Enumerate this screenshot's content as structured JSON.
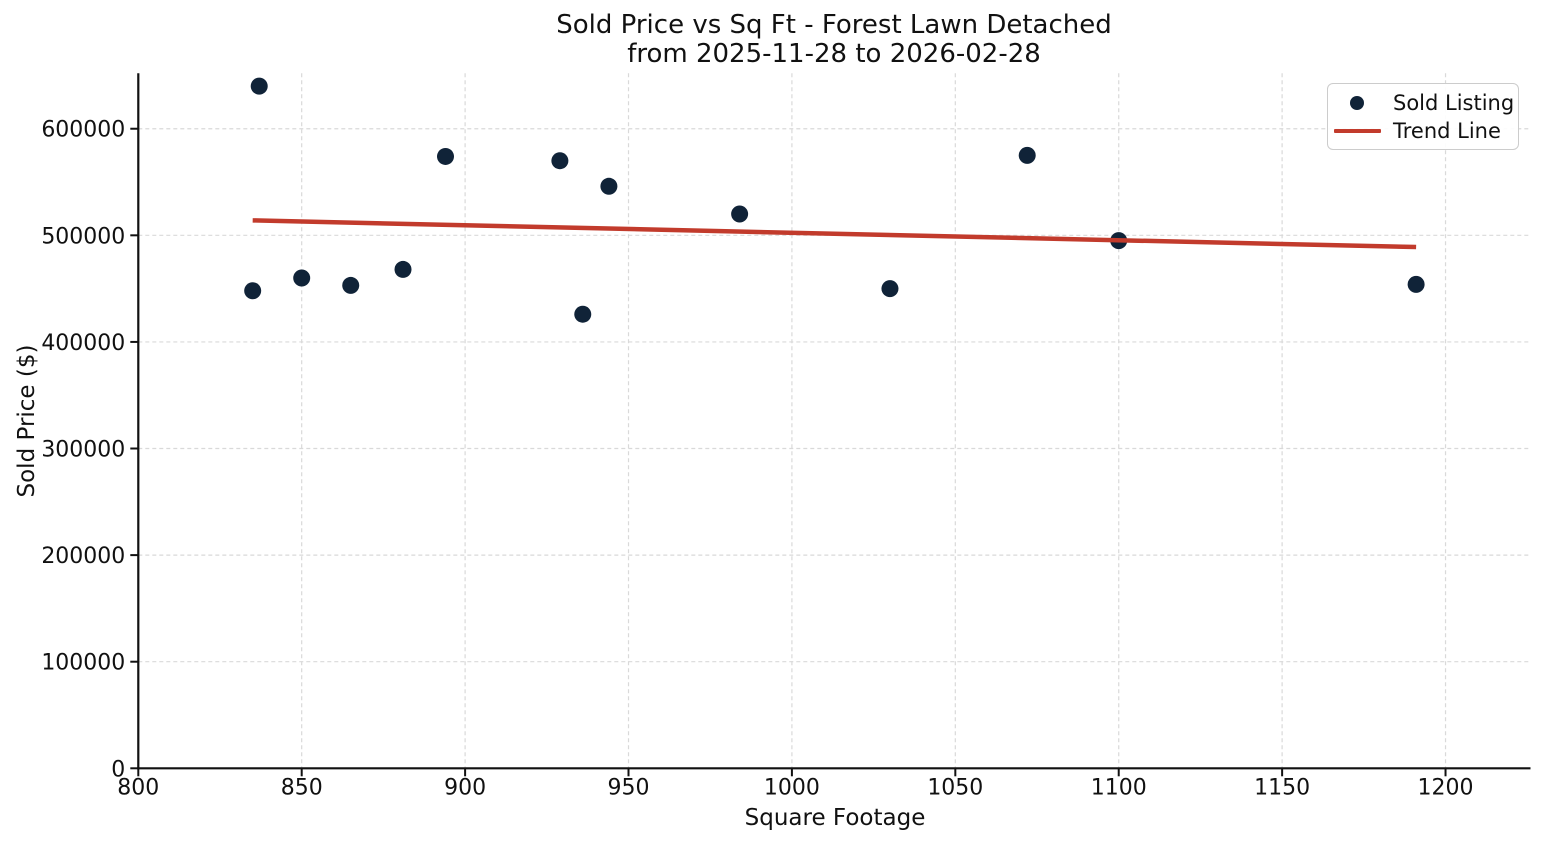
{
  "chart_data": {
    "type": "scatter",
    "title": "Sold Price vs Sq Ft - Forest Lawn Detached",
    "subtitle": "from 2025-11-28 to 2026-02-28",
    "xlabel": "Square Footage",
    "ylabel": "Sold Price ($)",
    "xlim": [
      800,
      1226
    ],
    "ylim": [
      0,
      652000
    ],
    "xticks": [
      800,
      850,
      900,
      950,
      1000,
      1050,
      1100,
      1150,
      1200
    ],
    "yticks": [
      0,
      100000,
      200000,
      300000,
      400000,
      500000,
      600000
    ],
    "grid": true,
    "grid_style": "dashed",
    "legend_position": "upper-right",
    "colors": {
      "point": "#102338",
      "trend": "#c23b2c",
      "grid": "#d9d9d9",
      "axis": "#111111"
    },
    "series": [
      {
        "name": "Sold Listing",
        "type": "scatter",
        "color": "#102338",
        "points": [
          [
            837,
            640000
          ],
          [
            894,
            574000
          ],
          [
            929,
            570000
          ],
          [
            944,
            546000
          ],
          [
            984,
            520000
          ],
          [
            1072,
            575000
          ],
          [
            835,
            448000
          ],
          [
            850,
            460000
          ],
          [
            865,
            453000
          ],
          [
            881,
            468000
          ],
          [
            936,
            426000
          ],
          [
            1030,
            450000
          ],
          [
            1100,
            495000
          ],
          [
            1191,
            454000
          ]
        ]
      },
      {
        "name": "Trend Line",
        "type": "line",
        "color": "#c23b2c",
        "points": [
          [
            835,
            514000
          ],
          [
            1191,
            489000
          ]
        ]
      }
    ],
    "legend": {
      "entries": [
        {
          "label": "Sold Listing",
          "marker": "dot",
          "color": "#102338"
        },
        {
          "label": "Trend Line",
          "marker": "line",
          "color": "#c23b2c"
        }
      ]
    }
  }
}
